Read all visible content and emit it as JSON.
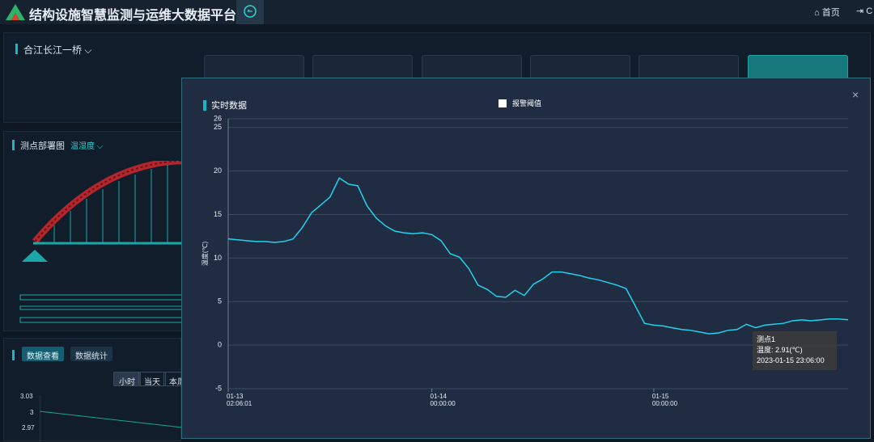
{
  "header": {
    "title": "结构设施智慧监测与运维大数据平台",
    "nav": [
      "首页",
      "C"
    ]
  },
  "bridge_panel": {
    "name": "合江长江一桥"
  },
  "deploy_panel": {
    "title": "测点部署图",
    "filter": "温湿度"
  },
  "data_panel": {
    "tabs": [
      "数据查看",
      "数据统计"
    ],
    "ranges": [
      "小时",
      "当天",
      "本周"
    ],
    "axis_labels": [
      "3.03",
      "3",
      "2.97"
    ]
  },
  "modal": {
    "title": "实时数据",
    "close": "×",
    "tooltip": {
      "value": "温度: 2.91(℃)",
      "time": "2023-01-15 23:06:00"
    }
  },
  "chart_data": {
    "type": "line",
    "ylabel": "温度(℃)",
    "threshold_legend": "报警阈值",
    "categories": [
      "01-13 02:06:01",
      null,
      null,
      null,
      null,
      null,
      null,
      null,
      null,
      null,
      null,
      null,
      null,
      null,
      null,
      null,
      null,
      null,
      null,
      null,
      null,
      null,
      "01-14 00:00:00",
      null,
      null,
      null,
      null,
      null,
      null,
      null,
      null,
      null,
      null,
      null,
      null,
      null,
      null,
      null,
      null,
      null,
      null,
      null,
      null,
      null,
      null,
      null,
      "01-15 00:00:00",
      null,
      null,
      null,
      null,
      null,
      null,
      null,
      null,
      null,
      null,
      null,
      null,
      null,
      null,
      null,
      null,
      null,
      null,
      null,
      null,
      null
    ],
    "series": [
      {
        "name": "测点1",
        "color": "#22d3ee",
        "values": [
          12.2,
          12.1,
          12.0,
          11.9,
          11.9,
          11.8,
          11.9,
          12.2,
          13.5,
          15.2,
          16.1,
          17.0,
          19.2,
          18.5,
          18.3,
          16.0,
          14.6,
          13.7,
          13.1,
          12.9,
          12.8,
          12.9,
          12.7,
          12.0,
          10.5,
          10.1,
          8.8,
          6.9,
          6.4,
          5.6,
          5.5,
          6.3,
          5.7,
          7.0,
          7.6,
          8.4,
          8.4,
          8.2,
          8.0,
          7.7,
          7.5,
          7.2,
          6.9,
          6.5,
          4.5,
          2.5,
          2.3,
          2.2,
          2.0,
          1.8,
          1.7,
          1.5,
          1.3,
          1.4,
          1.7,
          1.8,
          2.4,
          2.0,
          2.3,
          2.4,
          2.5,
          2.8,
          2.9,
          2.8,
          2.9,
          3.0,
          3.0,
          2.91
        ]
      }
    ],
    "ylim": [
      -5,
      26
    ],
    "yticks": [
      -5,
      0,
      5,
      10,
      15,
      20,
      25,
      26
    ],
    "grid": true
  }
}
